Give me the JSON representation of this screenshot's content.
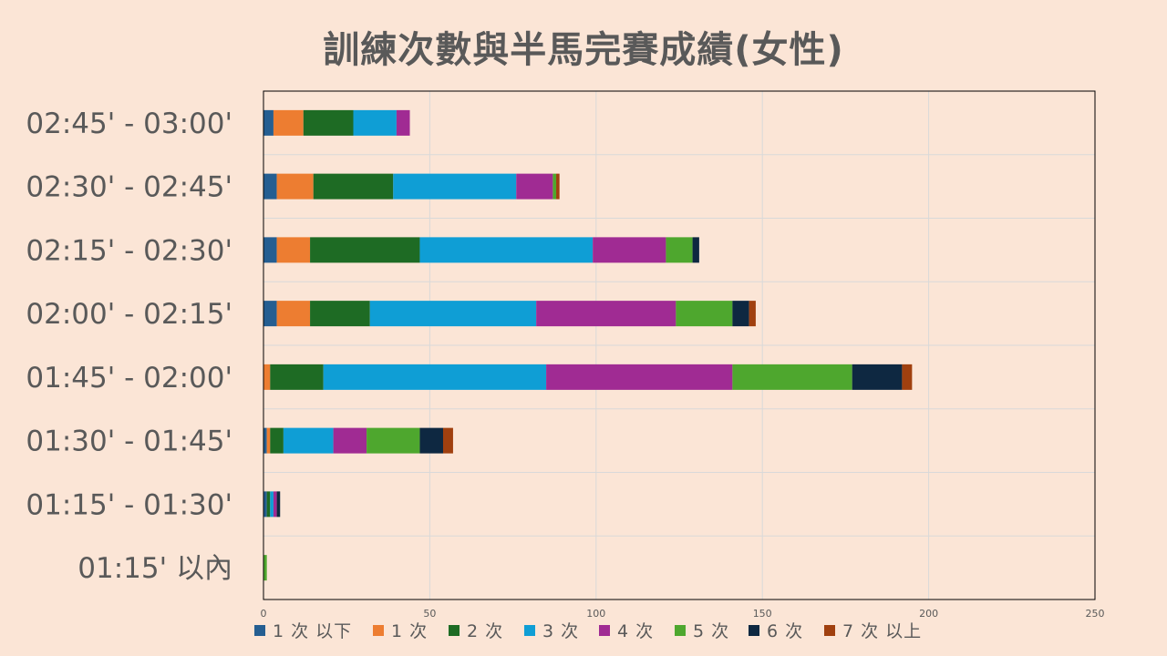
{
  "title": "訓練次數與半馬完賽成績(女性)",
  "chart_data": {
    "type": "bar",
    "orientation": "horizontal",
    "stacked": true,
    "title": "訓練次數與半馬完賽成績(女性)",
    "xlim": [
      0,
      250
    ],
    "xticks": [
      "0",
      "50",
      "100",
      "150",
      "200",
      "250"
    ],
    "grid": true,
    "legend_position": "bottom",
    "categories": [
      "02:45' - 03:00'",
      "02:30' - 02:45'",
      "02:15' -  02:30'",
      "02:00' - 02:15'",
      "01:45' - 02:00'",
      "01:30' - 01:45'",
      "01:15' - 01:30'",
      "01:15' 以內"
    ],
    "series": [
      {
        "name": "1 次 以下",
        "color": "#255e91",
        "values": [
          3,
          4,
          4,
          4,
          0,
          1,
          1,
          0
        ]
      },
      {
        "name": "1 次",
        "color": "#ed7d31",
        "values": [
          9,
          11,
          10,
          10,
          2,
          1,
          0,
          0
        ]
      },
      {
        "name": "2 次",
        "color": "#1e6b24",
        "values": [
          15,
          24,
          33,
          18,
          16,
          4,
          1,
          0
        ]
      },
      {
        "name": "3 次",
        "color": "#0f9ed5",
        "values": [
          13,
          37,
          52,
          50,
          67,
          15,
          1,
          0
        ]
      },
      {
        "name": "4 次",
        "color": "#a02b93",
        "values": [
          4,
          11,
          22,
          42,
          56,
          10,
          1,
          0
        ]
      },
      {
        "name": "5 次",
        "color": "#4ea72e",
        "values": [
          0,
          1,
          8,
          17,
          36,
          16,
          0,
          1
        ]
      },
      {
        "name": "6 次",
        "color": "#0e2841",
        "values": [
          0,
          0,
          2,
          5,
          15,
          7,
          1,
          0
        ]
      },
      {
        "name": "7 次 以上",
        "color": "#a0400f",
        "values": [
          0,
          1,
          0,
          2,
          3,
          3,
          0,
          0
        ]
      }
    ]
  }
}
